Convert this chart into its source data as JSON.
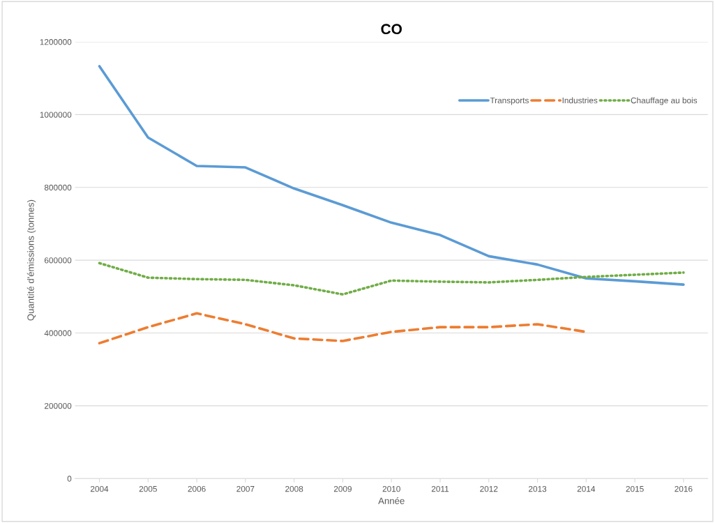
{
  "chart_data": {
    "type": "line",
    "title": "CO",
    "xlabel": "Année",
    "ylabel": "Quantité d'émissions (tonnes)",
    "categories": [
      "2004",
      "2005",
      "2006",
      "2007",
      "2008",
      "2009",
      "2010",
      "2011",
      "2012",
      "2013",
      "2014",
      "2015",
      "2016"
    ],
    "series": [
      {
        "name": "Transports",
        "color": "#5b9bd5",
        "line_style": "solid",
        "values": [
          1133000,
          937000,
          859000,
          855000,
          797000,
          751000,
          703000,
          669000,
          611000,
          588000,
          550000,
          542000,
          533000
        ]
      },
      {
        "name": "Industries",
        "color": "#ed7d31",
        "line_style": "dashed",
        "values": [
          372000,
          416000,
          454000,
          424000,
          385000,
          378000,
          403000,
          416000,
          416000,
          424000,
          403000,
          null,
          null
        ]
      },
      {
        "name": "Chauffage au bois",
        "color": "#70ad47",
        "line_style": "dotted",
        "values": [
          592000,
          552000,
          548000,
          546000,
          531000,
          506000,
          544000,
          541000,
          539000,
          546000,
          554000,
          560000,
          566000
        ]
      }
    ],
    "ylim": [
      0,
      1200000
    ],
    "yticks": [
      0,
      200000,
      400000,
      600000,
      800000,
      1000000,
      1200000
    ],
    "grid": "y",
    "legend": "top right",
    "marker": "none"
  }
}
